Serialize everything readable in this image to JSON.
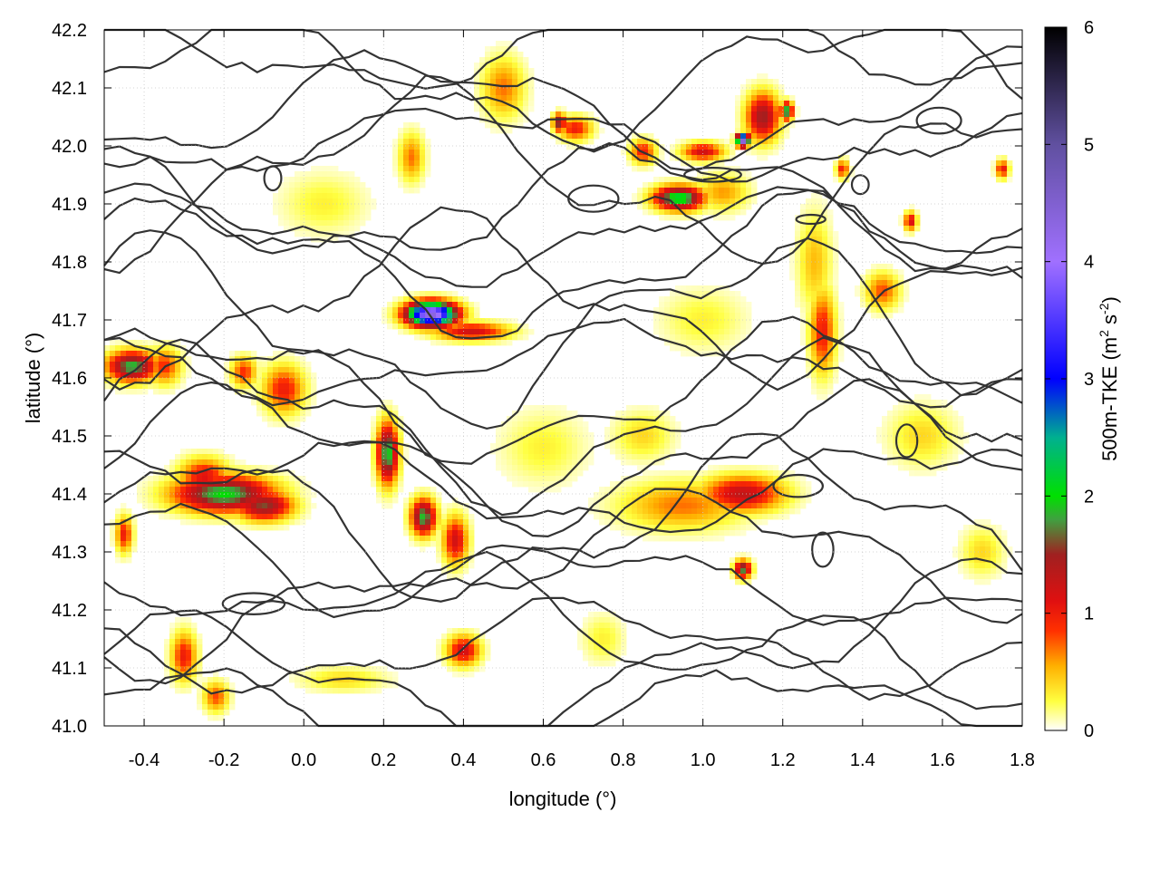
{
  "chart_data": {
    "type": "heatmap",
    "xlabel": "longitude (°)",
    "ylabel": "latitude (°)",
    "colorbar": {
      "label_main": "500m-TKE (m",
      "label_sup1": "2",
      "label_mid": " s",
      "label_sup2": "-2",
      "label_end": ")",
      "range": [
        0,
        6
      ],
      "ticks": [
        "0",
        "1",
        "2",
        "3",
        "4",
        "5",
        "6"
      ],
      "stops": [
        {
          "value": 0.0,
          "color": "#ffffff"
        },
        {
          "value": 0.25,
          "color": "#ffff40"
        },
        {
          "value": 0.55,
          "color": "#ffb000"
        },
        {
          "value": 0.85,
          "color": "#ff3000"
        },
        {
          "value": 1.1,
          "color": "#e01010"
        },
        {
          "value": 1.5,
          "color": "#a02020"
        },
        {
          "value": 1.8,
          "color": "#40a040"
        },
        {
          "value": 2.0,
          "color": "#00e000"
        },
        {
          "value": 2.5,
          "color": "#00b090"
        },
        {
          "value": 3.0,
          "color": "#0000ff"
        },
        {
          "value": 4.0,
          "color": "#a070ff"
        },
        {
          "value": 5.0,
          "color": "#6050a0"
        },
        {
          "value": 6.0,
          "color": "#000000"
        }
      ]
    },
    "xlim": [
      -0.5,
      1.8
    ],
    "ylim": [
      41.0,
      42.2
    ],
    "xticks": [
      "-0.4",
      "-0.2",
      "0.0",
      "0.2",
      "0.4",
      "0.6",
      "0.8",
      "1.0",
      "1.2",
      "1.4",
      "1.6",
      "1.8"
    ],
    "yticks": [
      "41.0",
      "41.1",
      "41.2",
      "41.3",
      "41.4",
      "41.5",
      "41.6",
      "41.7",
      "41.8",
      "41.9",
      "42.0",
      "42.1",
      "42.2"
    ],
    "grid": true,
    "hotspots": [
      {
        "lon": 0.32,
        "lat": 41.71,
        "peak": 4.4,
        "rx": 0.06,
        "ry": 0.02
      },
      {
        "lon": 0.42,
        "lat": 41.68,
        "peak": 1.2,
        "rx": 0.09,
        "ry": 0.015
      },
      {
        "lon": -0.43,
        "lat": 41.62,
        "peak": 1.9,
        "rx": 0.06,
        "ry": 0.025
      },
      {
        "lon": -0.35,
        "lat": 41.62,
        "peak": 0.9,
        "rx": 0.04,
        "ry": 0.03
      },
      {
        "lon": -0.2,
        "lat": 41.4,
        "peak": 2.0,
        "rx": 0.12,
        "ry": 0.03
      },
      {
        "lon": -0.1,
        "lat": 41.38,
        "peak": 1.6,
        "rx": 0.07,
        "ry": 0.025
      },
      {
        "lon": -0.25,
        "lat": 41.43,
        "peak": 1.1,
        "rx": 0.06,
        "ry": 0.03
      },
      {
        "lon": 0.21,
        "lat": 41.47,
        "peak": 2.0,
        "rx": 0.025,
        "ry": 0.05
      },
      {
        "lon": 0.3,
        "lat": 41.36,
        "peak": 1.9,
        "rx": 0.03,
        "ry": 0.03
      },
      {
        "lon": 0.38,
        "lat": 41.32,
        "peak": 1.2,
        "rx": 0.03,
        "ry": 0.04
      },
      {
        "lon": -0.3,
        "lat": 41.12,
        "peak": 1.0,
        "rx": 0.03,
        "ry": 0.04
      },
      {
        "lon": -0.22,
        "lat": 41.05,
        "peak": 0.8,
        "rx": 0.03,
        "ry": 0.025
      },
      {
        "lon": 0.4,
        "lat": 41.13,
        "peak": 1.2,
        "rx": 0.04,
        "ry": 0.025
      },
      {
        "lon": -0.05,
        "lat": 41.58,
        "peak": 1.0,
        "rx": 0.05,
        "ry": 0.04
      },
      {
        "lon": -0.15,
        "lat": 41.61,
        "peak": 0.9,
        "rx": 0.03,
        "ry": 0.025
      },
      {
        "lon": -0.45,
        "lat": 41.33,
        "peak": 1.0,
        "rx": 0.02,
        "ry": 0.03
      },
      {
        "lon": 1.1,
        "lat": 41.4,
        "peak": 1.3,
        "rx": 0.1,
        "ry": 0.03
      },
      {
        "lon": 0.95,
        "lat": 41.38,
        "peak": 0.7,
        "rx": 0.15,
        "ry": 0.04
      },
      {
        "lon": 1.1,
        "lat": 41.27,
        "peak": 1.8,
        "rx": 0.02,
        "ry": 0.015
      },
      {
        "lon": 1.3,
        "lat": 41.68,
        "peak": 1.0,
        "rx": 0.03,
        "ry": 0.07
      },
      {
        "lon": 1.28,
        "lat": 41.8,
        "peak": 0.5,
        "rx": 0.04,
        "ry": 0.08
      },
      {
        "lon": 0.94,
        "lat": 41.91,
        "peak": 2.2,
        "rx": 0.06,
        "ry": 0.02
      },
      {
        "lon": 0.85,
        "lat": 41.99,
        "peak": 1.0,
        "rx": 0.03,
        "ry": 0.02
      },
      {
        "lon": 1.0,
        "lat": 41.99,
        "peak": 1.2,
        "rx": 0.05,
        "ry": 0.015
      },
      {
        "lon": 1.1,
        "lat": 42.01,
        "peak": 4.6,
        "rx": 0.015,
        "ry": 0.01
      },
      {
        "lon": 1.15,
        "lat": 42.05,
        "peak": 1.5,
        "rx": 0.04,
        "ry": 0.04
      },
      {
        "lon": 1.21,
        "lat": 42.06,
        "peak": 2.0,
        "rx": 0.015,
        "ry": 0.015
      },
      {
        "lon": 0.68,
        "lat": 42.03,
        "peak": 1.0,
        "rx": 0.04,
        "ry": 0.02
      },
      {
        "lon": 0.64,
        "lat": 42.04,
        "peak": 1.7,
        "rx": 0.015,
        "ry": 0.015
      },
      {
        "lon": 0.27,
        "lat": 41.98,
        "peak": 0.7,
        "rx": 0.03,
        "ry": 0.04
      },
      {
        "lon": 0.5,
        "lat": 42.1,
        "peak": 0.7,
        "rx": 0.05,
        "ry": 0.05
      },
      {
        "lon": 1.35,
        "lat": 41.96,
        "peak": 1.0,
        "rx": 0.015,
        "ry": 0.015
      },
      {
        "lon": 1.52,
        "lat": 41.87,
        "peak": 1.2,
        "rx": 0.015,
        "ry": 0.015
      },
      {
        "lon": 1.75,
        "lat": 41.96,
        "peak": 1.1,
        "rx": 0.015,
        "ry": 0.015
      },
      {
        "lon": 1.05,
        "lat": 41.92,
        "peak": 0.6,
        "rx": 0.06,
        "ry": 0.03
      },
      {
        "lon": 0.6,
        "lat": 41.48,
        "peak": 0.3,
        "rx": 0.1,
        "ry": 0.06
      },
      {
        "lon": 0.85,
        "lat": 41.5,
        "peak": 0.4,
        "rx": 0.07,
        "ry": 0.04
      },
      {
        "lon": 1.55,
        "lat": 41.5,
        "peak": 0.4,
        "rx": 0.08,
        "ry": 0.05
      },
      {
        "lon": 0.1,
        "lat": 41.08,
        "peak": 0.4,
        "rx": 0.1,
        "ry": 0.02
      },
      {
        "lon": 1.0,
        "lat": 41.7,
        "peak": 0.3,
        "rx": 0.1,
        "ry": 0.05
      },
      {
        "lon": 0.05,
        "lat": 41.9,
        "peak": 0.3,
        "rx": 0.1,
        "ry": 0.05
      },
      {
        "lon": 1.45,
        "lat": 41.75,
        "peak": 0.8,
        "rx": 0.04,
        "ry": 0.03
      },
      {
        "lon": 1.7,
        "lat": 41.3,
        "peak": 0.4,
        "rx": 0.05,
        "ry": 0.04
      },
      {
        "lon": 0.75,
        "lat": 41.15,
        "peak": 0.3,
        "rx": 0.05,
        "ry": 0.04
      }
    ]
  }
}
